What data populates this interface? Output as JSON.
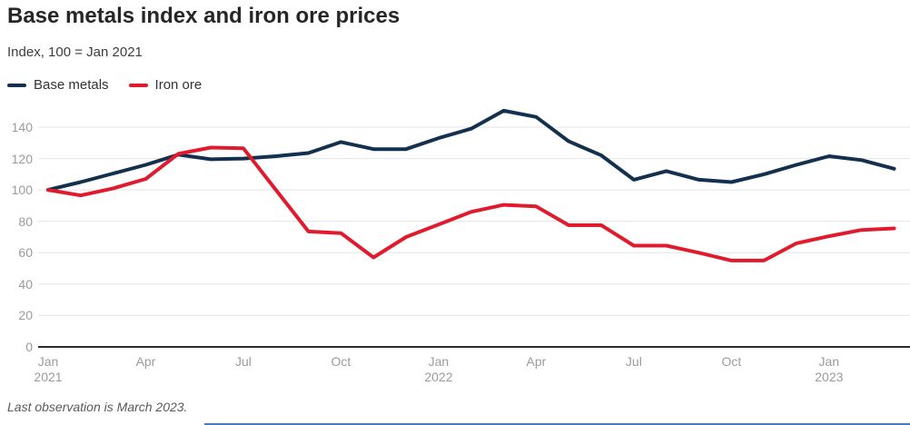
{
  "title": "Base metals index and iron ore prices",
  "subtitle": "Index, 100 = Jan 2021",
  "footer": "Last observation is March 2023.",
  "legend": [
    {
      "label": "Base metals",
      "color": "#14304f"
    },
    {
      "label": "Iron ore",
      "color": "#e11b2e"
    }
  ],
  "colors": {
    "base_metals": "#14304f",
    "iron_ore": "#e11b2e",
    "gridline": "#e4e4e4",
    "zero_axis": "#2b2b2b",
    "tick_label": "#9b9b9b",
    "bottom_rule": "#4a7dbd"
  },
  "chart_data": {
    "type": "line",
    "title": "Base metals index and iron ore prices",
    "subtitle": "Index, 100 = Jan 2021",
    "xlabel": "",
    "ylabel": "Index, 100 = Jan 2021",
    "ylim": [
      0,
      155
    ],
    "grid": true,
    "legend_position": "top-left",
    "y_ticks": [
      0,
      20,
      40,
      60,
      80,
      100,
      120,
      140
    ],
    "x": [
      "Jan 2021",
      "Feb 2021",
      "Mar 2021",
      "Apr 2021",
      "May 2021",
      "Jun 2021",
      "Jul 2021",
      "Aug 2021",
      "Sep 2021",
      "Oct 2021",
      "Nov 2021",
      "Dec 2021",
      "Jan 2022",
      "Feb 2022",
      "Mar 2022",
      "Apr 2022",
      "May 2022",
      "Jun 2022",
      "Jul 2022",
      "Aug 2022",
      "Sep 2022",
      "Oct 2022",
      "Nov 2022",
      "Dec 2022",
      "Jan 2023",
      "Feb 2023",
      "Mar 2023"
    ],
    "x_ticks": [
      {
        "index": 0,
        "label": "Jan",
        "year": "2021"
      },
      {
        "index": 3,
        "label": "Apr",
        "year": ""
      },
      {
        "index": 6,
        "label": "Jul",
        "year": ""
      },
      {
        "index": 9,
        "label": "Oct",
        "year": ""
      },
      {
        "index": 12,
        "label": "Jan",
        "year": "2022"
      },
      {
        "index": 15,
        "label": "Apr",
        "year": ""
      },
      {
        "index": 18,
        "label": "Jul",
        "year": ""
      },
      {
        "index": 21,
        "label": "Oct",
        "year": ""
      },
      {
        "index": 24,
        "label": "Jan",
        "year": "2023"
      }
    ],
    "series": [
      {
        "name": "Base metals",
        "color": "#14304f",
        "values": [
          100,
          105,
          110.5,
          116,
          122.5,
          119.5,
          120,
          121.5,
          123.5,
          130.5,
          126,
          126,
          133,
          139,
          150.5,
          146.5,
          131,
          122,
          106.5,
          112,
          106.5,
          105,
          110,
          116,
          121.5,
          119,
          113.5
        ]
      },
      {
        "name": "Iron ore",
        "color": "#e11b2e",
        "values": [
          100,
          96.5,
          101,
          107,
          123,
          127,
          126.5,
          100,
          73.5,
          72.5,
          57,
          70,
          78,
          86,
          90.5,
          89.5,
          77.5,
          77.5,
          64.5,
          64.5,
          60,
          55,
          55,
          66,
          70.5,
          74.5,
          75.5
        ]
      }
    ]
  }
}
